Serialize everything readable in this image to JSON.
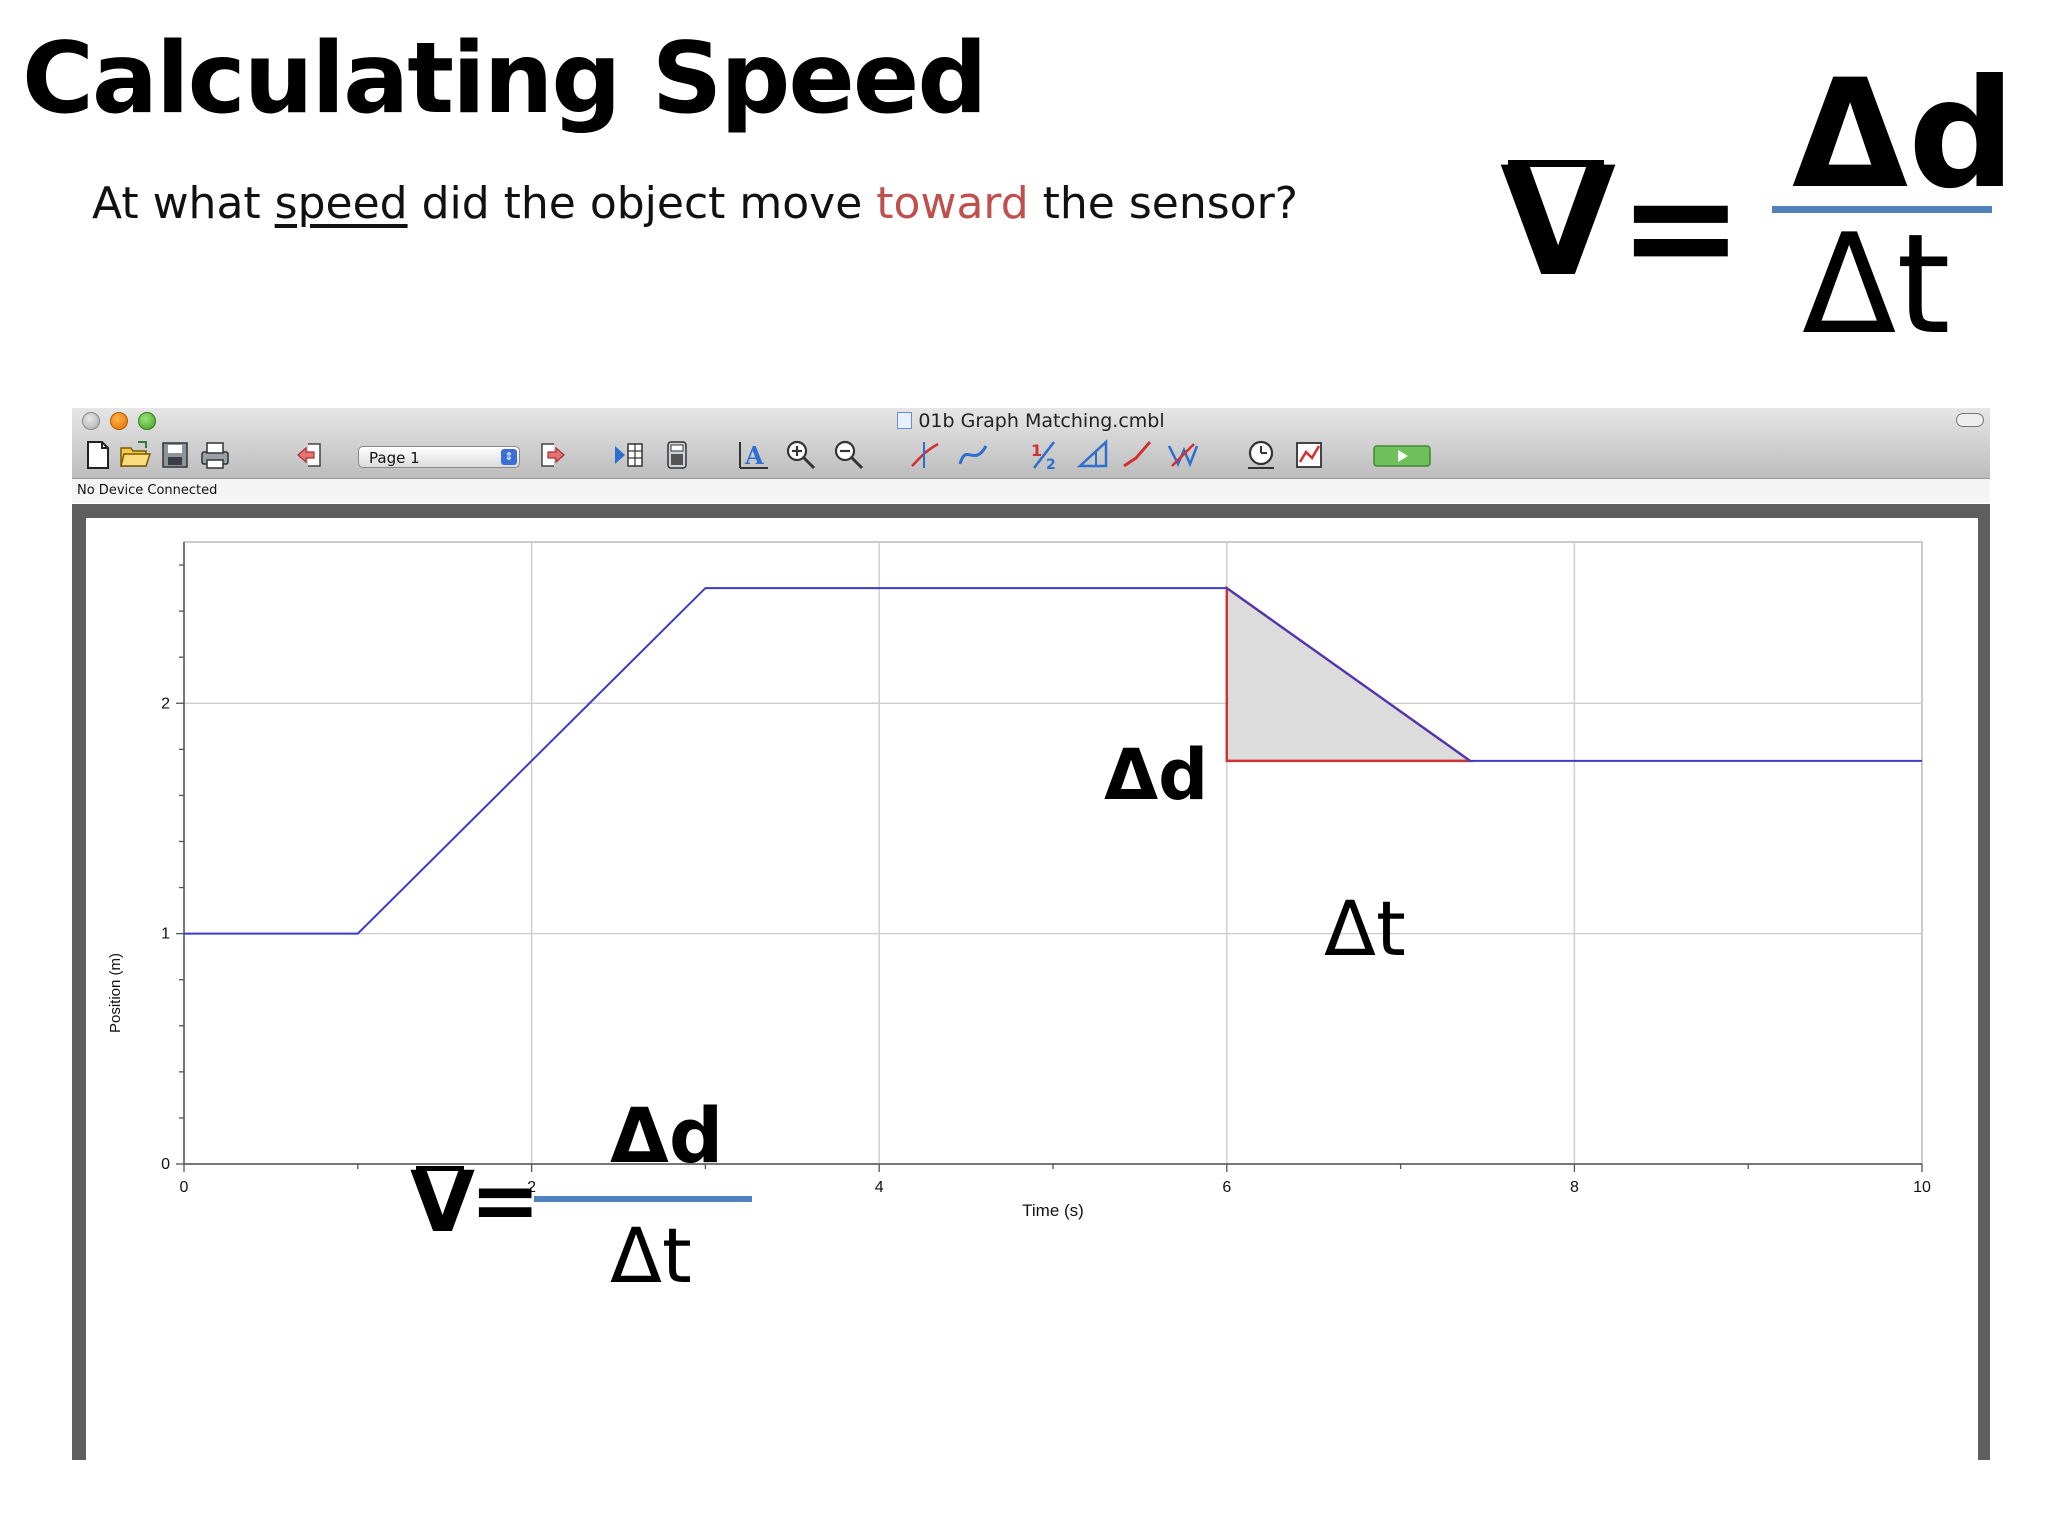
{
  "slide": {
    "title": "Calculating Speed",
    "question": {
      "part1": "At what ",
      "underlined": "speed",
      "part2": " did the object move ",
      "highlight": "toward",
      "part3": " the sensor?"
    },
    "accent_red": "#c0504d",
    "accent_blue": "#4f81bd"
  },
  "formula": {
    "v": "V",
    "eq": "=",
    "numerator": "Δd",
    "denominator": "Δt"
  },
  "window": {
    "title": "01b Graph Matching.cmbl",
    "page_select": "Page 1",
    "status": "No Device Connected"
  },
  "toolbar_icons": [
    "new-file-icon",
    "open-folder-icon",
    "save-icon",
    "print-icon",
    "back-page-icon",
    "next-page-icon",
    "data-table-icon",
    "calculator-icon",
    "autoscale-icon",
    "zoom-in-icon",
    "zoom-out-icon",
    "examine-icon",
    "interpolate-icon",
    "integral-icon",
    "tangent-icon",
    "linear-fit-icon",
    "curve-fit-icon",
    "data-collection-icon",
    "graph-options-icon",
    "collect-icon"
  ],
  "annotations": {
    "delta_d": "Δd",
    "delta_t": "Δt",
    "triangle_fill": "#dcdcdc",
    "triangle_stroke": "#cc3333"
  },
  "chart_data": {
    "type": "line",
    "xlabel": "Time (s)",
    "ylabel": "Position (m)",
    "xlim": [
      0,
      10
    ],
    "ylim": [
      0,
      2.7
    ],
    "xticks": [
      0,
      2,
      4,
      6,
      8,
      10
    ],
    "yticks": [
      0,
      1,
      2
    ],
    "grid": true,
    "line_color": "#3c3cc8",
    "series": [
      {
        "x": [
          0,
          1,
          3,
          6,
          7.4,
          10
        ],
        "y": [
          1,
          1,
          2.5,
          2.5,
          1.75,
          1.75
        ]
      }
    ],
    "triangle": {
      "x": [
        6,
        6,
        7.4
      ],
      "y": [
        2.5,
        1.75,
        1.75
      ]
    }
  }
}
